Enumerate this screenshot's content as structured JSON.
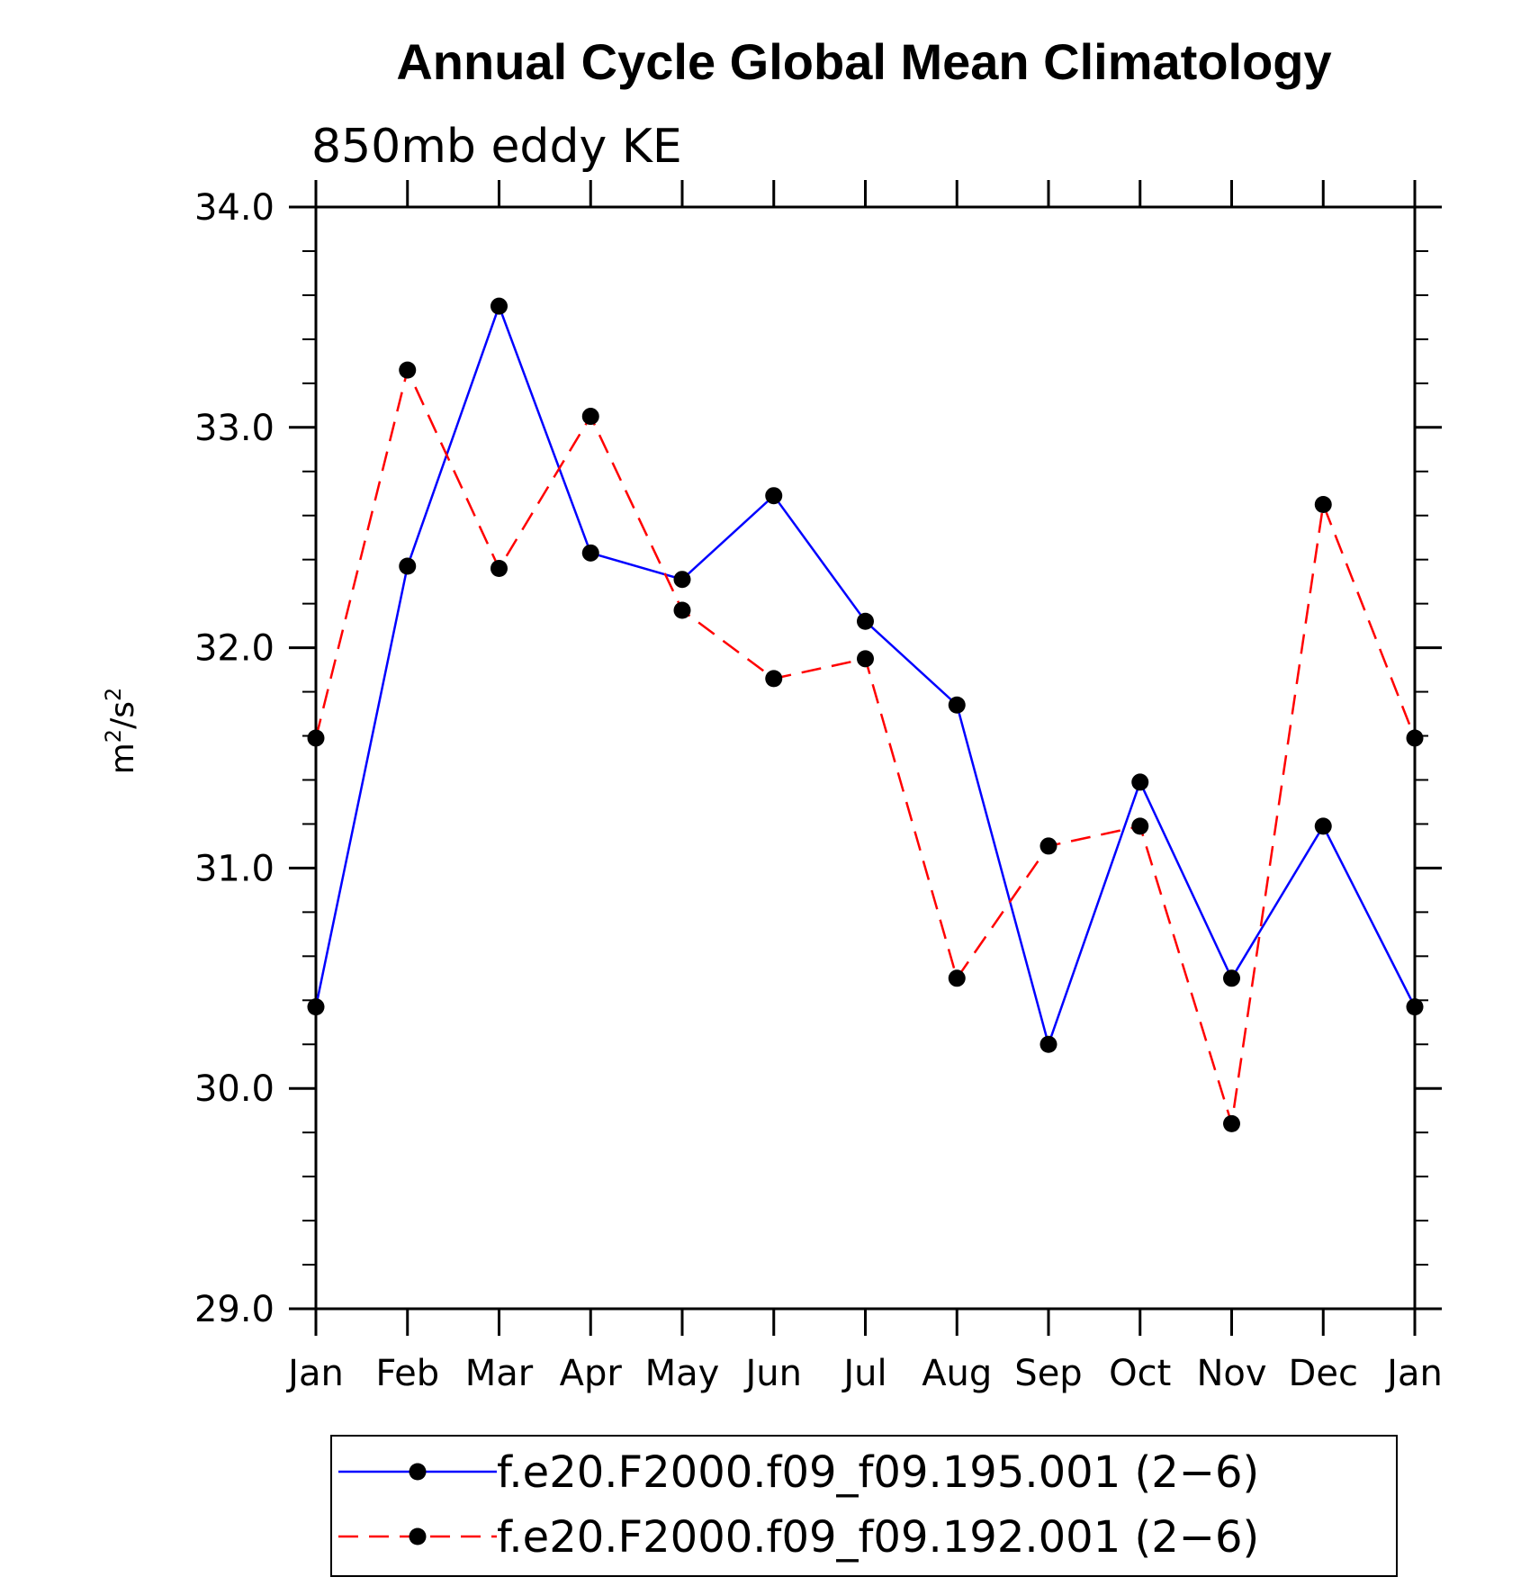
{
  "chart_data": {
    "type": "line",
    "title": "Annual Cycle Global Mean Climatology",
    "subtitle": "850mb eddy KE",
    "ylabel": "m²/s²",
    "xlabel": "",
    "categories": [
      "Jan",
      "Feb",
      "Mar",
      "Apr",
      "May",
      "Jun",
      "Jul",
      "Aug",
      "Sep",
      "Oct",
      "Nov",
      "Dec",
      "Jan"
    ],
    "ylim": [
      29.0,
      34.0
    ],
    "yticks": [
      29.0,
      30.0,
      31.0,
      32.0,
      33.0,
      34.0
    ],
    "ytick_labels": [
      "29.0",
      "30.0",
      "31.0",
      "32.0",
      "33.0",
      "34.0"
    ],
    "y_minor_step": 0.2,
    "grid": false,
    "legend_position": "bottom",
    "series": [
      {
        "name": "f.e20.F2000.f09_f09.195.001 (2−6)",
        "color": "#0000ff",
        "line_style": "solid",
        "marker": "filled-circle",
        "values": [
          30.37,
          32.37,
          33.55,
          32.43,
          32.31,
          32.69,
          32.12,
          31.74,
          30.2,
          31.39,
          30.5,
          31.19,
          30.37
        ]
      },
      {
        "name": "f.e20.F2000.f09_f09.192.001 (2−6)",
        "color": "#ff0000",
        "line_style": "dashed",
        "marker": "filled-circle",
        "values": [
          31.59,
          33.26,
          32.36,
          33.05,
          32.17,
          31.86,
          31.95,
          30.5,
          31.1,
          31.19,
          29.84,
          32.65,
          31.59
        ]
      }
    ]
  }
}
